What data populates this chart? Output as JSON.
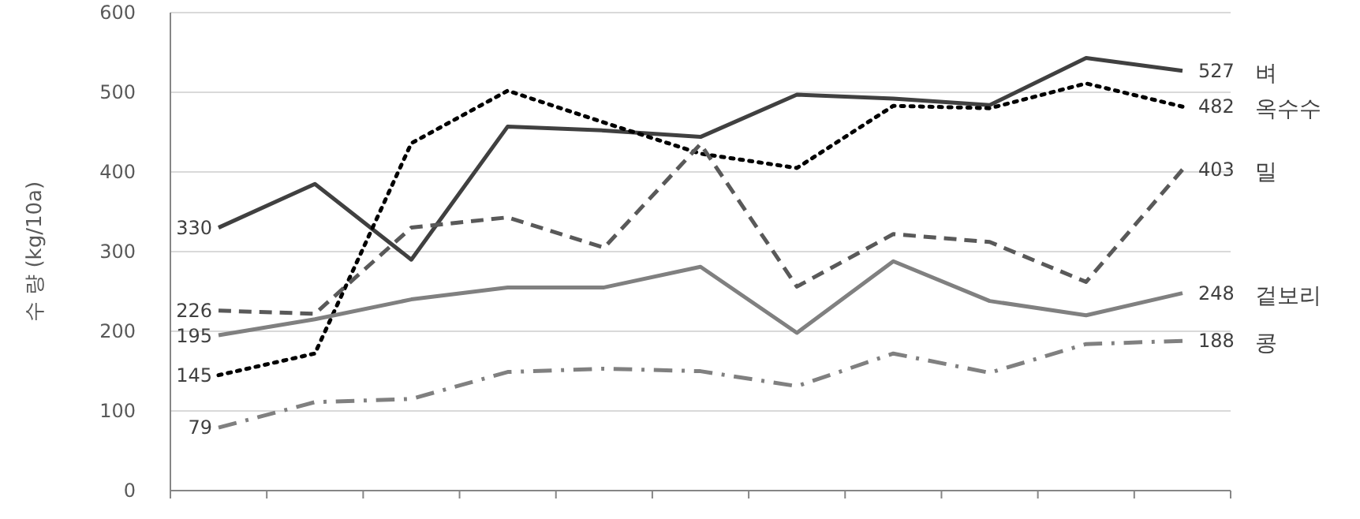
{
  "chart_data": {
    "type": "line",
    "ylabel": "수 량 (kg/10a)",
    "categories": [
      null,
      null,
      null,
      null,
      null,
      null,
      null,
      null,
      null,
      null,
      null
    ],
    "ylim": [
      0,
      600
    ],
    "yticks": [
      0,
      100,
      200,
      300,
      400,
      500,
      600
    ],
    "grid": "y",
    "legend": false,
    "marker": "none",
    "series": [
      {
        "name": "벼",
        "color": "#404040",
        "line_style": "solid",
        "values": [
          330,
          385,
          290,
          457,
          452,
          444,
          497,
          492,
          484,
          543,
          527
        ],
        "value_labels": [
          "330",
          null,
          null,
          null,
          null,
          null,
          null,
          null,
          null,
          null,
          "527"
        ]
      },
      {
        "name": "옥수수",
        "color": "#000000",
        "line_style": "dotted",
        "values": [
          145,
          172,
          436,
          502,
          462,
          423,
          405,
          483,
          480,
          511,
          482
        ],
        "value_labels": [
          "145",
          null,
          null,
          null,
          null,
          null,
          null,
          null,
          null,
          null,
          "482"
        ]
      },
      {
        "name": "밀",
        "color": "#595959",
        "line_style": "dashed",
        "values": [
          226,
          222,
          330,
          343,
          305,
          435,
          256,
          322,
          312,
          262,
          403
        ],
        "value_labels": [
          "226",
          null,
          null,
          null,
          null,
          null,
          null,
          null,
          null,
          null,
          "403"
        ]
      },
      {
        "name": "겉보리",
        "color": "#808080",
        "line_style": "solid",
        "values": [
          195,
          215,
          240,
          255,
          255,
          281,
          198,
          288,
          238,
          220,
          248
        ],
        "value_labels": [
          "195",
          null,
          null,
          null,
          null,
          null,
          null,
          null,
          null,
          null,
          "248"
        ]
      },
      {
        "name": "콩",
        "color": "#808080",
        "line_style": "dashdot",
        "values": [
          79,
          111,
          115,
          149,
          153,
          150,
          131,
          172,
          148,
          184,
          188
        ],
        "value_labels": [
          "79",
          null,
          null,
          null,
          null,
          null,
          null,
          null,
          null,
          null,
          "188"
        ]
      }
    ]
  }
}
